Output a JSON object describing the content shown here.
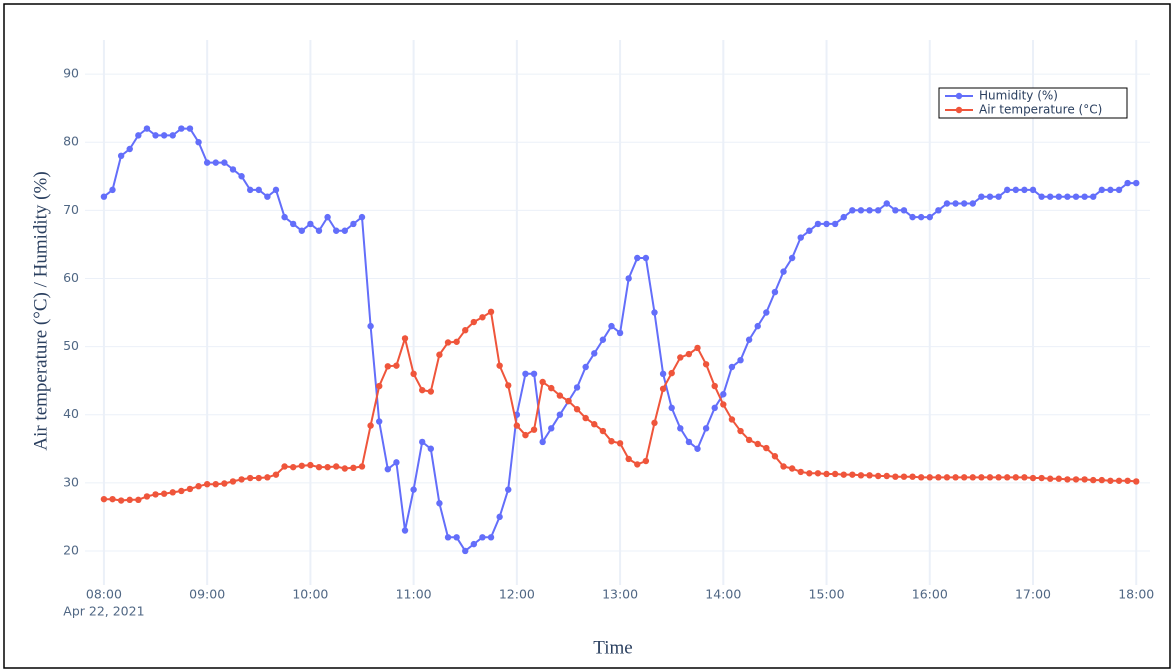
{
  "chart_data": {
    "type": "line",
    "xlabel": "Time",
    "ylabel": "Air temperature (°C) / Humidity (%)",
    "x_date_label": "Apr 22, 2021",
    "x": [
      "2021-04-22 08:00",
      "2021-04-22 08:05",
      "2021-04-22 08:10",
      "2021-04-22 08:15",
      "2021-04-22 08:20",
      "2021-04-22 08:25",
      "2021-04-22 08:30",
      "2021-04-22 08:35",
      "2021-04-22 08:40",
      "2021-04-22 08:45",
      "2021-04-22 08:50",
      "2021-04-22 08:55",
      "2021-04-22 09:00",
      "2021-04-22 09:05",
      "2021-04-22 09:10",
      "2021-04-22 09:15",
      "2021-04-22 09:20",
      "2021-04-22 09:25",
      "2021-04-22 09:30",
      "2021-04-22 09:35",
      "2021-04-22 09:40",
      "2021-04-22 09:45",
      "2021-04-22 09:50",
      "2021-04-22 09:55",
      "2021-04-22 10:00",
      "2021-04-22 10:05",
      "2021-04-22 10:10",
      "2021-04-22 10:15",
      "2021-04-22 10:20",
      "2021-04-22 10:25",
      "2021-04-22 10:30",
      "2021-04-22 10:35",
      "2021-04-22 10:40",
      "2021-04-22 10:45",
      "2021-04-22 10:50",
      "2021-04-22 10:55",
      "2021-04-22 11:00",
      "2021-04-22 11:05",
      "2021-04-22 11:10",
      "2021-04-22 11:15",
      "2021-04-22 11:20",
      "2021-04-22 11:25",
      "2021-04-22 11:30",
      "2021-04-22 11:35",
      "2021-04-22 11:40",
      "2021-04-22 11:45",
      "2021-04-22 11:50",
      "2021-04-22 11:55",
      "2021-04-22 12:00",
      "2021-04-22 12:05",
      "2021-04-22 12:10",
      "2021-04-22 12:15",
      "2021-04-22 12:20",
      "2021-04-22 12:25",
      "2021-04-22 12:30",
      "2021-04-22 12:35",
      "2021-04-22 12:40",
      "2021-04-22 12:45",
      "2021-04-22 12:50",
      "2021-04-22 12:55",
      "2021-04-22 13:00",
      "2021-04-22 13:05",
      "2021-04-22 13:10",
      "2021-04-22 13:15",
      "2021-04-22 13:20",
      "2021-04-22 13:25",
      "2021-04-22 13:30",
      "2021-04-22 13:35",
      "2021-04-22 13:40",
      "2021-04-22 13:45",
      "2021-04-22 13:50",
      "2021-04-22 13:55",
      "2021-04-22 14:00",
      "2021-04-22 14:05",
      "2021-04-22 14:10",
      "2021-04-22 14:15",
      "2021-04-22 14:20",
      "2021-04-22 14:25",
      "2021-04-22 14:30",
      "2021-04-22 14:35",
      "2021-04-22 14:40",
      "2021-04-22 14:45",
      "2021-04-22 14:50",
      "2021-04-22 14:55",
      "2021-04-22 15:00",
      "2021-04-22 15:05",
      "2021-04-22 15:10",
      "2021-04-22 15:15",
      "2021-04-22 15:20",
      "2021-04-22 15:25",
      "2021-04-22 15:30",
      "2021-04-22 15:35",
      "2021-04-22 15:40",
      "2021-04-22 15:45",
      "2021-04-22 15:50",
      "2021-04-22 15:55",
      "2021-04-22 16:00",
      "2021-04-22 16:05",
      "2021-04-22 16:10",
      "2021-04-22 16:15",
      "2021-04-22 16:20",
      "2021-04-22 16:25",
      "2021-04-22 16:30",
      "2021-04-22 16:35",
      "2021-04-22 16:40",
      "2021-04-22 16:45",
      "2021-04-22 16:50",
      "2021-04-22 16:55",
      "2021-04-22 17:00",
      "2021-04-22 17:05",
      "2021-04-22 17:10",
      "2021-04-22 17:15",
      "2021-04-22 17:20",
      "2021-04-22 17:25",
      "2021-04-22 17:30",
      "2021-04-22 17:35",
      "2021-04-22 17:40",
      "2021-04-22 17:45",
      "2021-04-22 17:50",
      "2021-04-22 17:55",
      "2021-04-22 18:00"
    ],
    "series": [
      {
        "name": "Humidity (%)",
        "color": "#636efa",
        "values": [
          72,
          73,
          78,
          79,
          81,
          82,
          81,
          81,
          81,
          82,
          82,
          80,
          77,
          77,
          77,
          76,
          75,
          73,
          73,
          72,
          73,
          69,
          68,
          67,
          68,
          67,
          69,
          67,
          67,
          68,
          69,
          53,
          39,
          32,
          33,
          23,
          29,
          36,
          35,
          27,
          22,
          22,
          20,
          21,
          22,
          22,
          25,
          29,
          40,
          46,
          46,
          36,
          38,
          40,
          42,
          44,
          47,
          49,
          51,
          53,
          52,
          60,
          63,
          63,
          55,
          46,
          41,
          38,
          36,
          35,
          38,
          41,
          43,
          47,
          48,
          51,
          53,
          55,
          58,
          61,
          63,
          66,
          67,
          68,
          68,
          68,
          69,
          70,
          70,
          70,
          70,
          71,
          70,
          70,
          69,
          69,
          69,
          70,
          71,
          71,
          71,
          71,
          72,
          72,
          72,
          73,
          73,
          73,
          73,
          72,
          72,
          72,
          72,
          72,
          72,
          72,
          73,
          73,
          73,
          74,
          74
        ]
      },
      {
        "name": "Air temperature (°C)",
        "color": "#ef553b",
        "values": [
          27.6,
          27.6,
          27.4,
          27.5,
          27.5,
          28.0,
          28.3,
          28.4,
          28.6,
          28.8,
          29.1,
          29.5,
          29.8,
          29.8,
          29.9,
          30.2,
          30.5,
          30.7,
          30.7,
          30.8,
          31.2,
          32.4,
          32.3,
          32.5,
          32.6,
          32.3,
          32.3,
          32.4,
          32.1,
          32.2,
          32.4,
          38.4,
          44.2,
          47.1,
          47.2,
          51.2,
          46.0,
          43.6,
          43.4,
          48.8,
          50.6,
          50.7,
          52.4,
          53.6,
          54.3,
          55.1,
          47.2,
          44.3,
          38.4,
          37.0,
          37.8,
          44.8,
          43.9,
          42.8,
          42.0,
          40.8,
          39.5,
          38.6,
          37.6,
          36.1,
          35.8,
          33.5,
          32.7,
          33.2,
          38.8,
          43.8,
          46.1,
          48.4,
          48.9,
          49.8,
          47.4,
          44.2,
          41.5,
          39.3,
          37.6,
          36.3,
          35.7,
          35.1,
          33.9,
          32.4,
          32.1,
          31.6,
          31.4,
          31.4,
          31.3,
          31.3,
          31.2,
          31.2,
          31.1,
          31.1,
          31.0,
          31.0,
          30.9,
          30.9,
          30.9,
          30.8,
          30.8,
          30.8,
          30.8,
          30.8,
          30.8,
          30.8,
          30.8,
          30.8,
          30.8,
          30.8,
          30.8,
          30.8,
          30.7,
          30.7,
          30.6,
          30.6,
          30.5,
          30.5,
          30.5,
          30.4,
          30.4,
          30.3,
          30.3,
          30.3,
          30.2
        ]
      }
    ],
    "xlim": [
      "2021-04-22 07:49",
      "2021-04-22 18:08"
    ],
    "xticks": [
      {
        "value": "2021-04-22 08:00",
        "label": "08:00"
      },
      {
        "value": "2021-04-22 09:00",
        "label": "09:00"
      },
      {
        "value": "2021-04-22 10:00",
        "label": "10:00"
      },
      {
        "value": "2021-04-22 11:00",
        "label": "11:00"
      },
      {
        "value": "2021-04-22 12:00",
        "label": "12:00"
      },
      {
        "value": "2021-04-22 13:00",
        "label": "13:00"
      },
      {
        "value": "2021-04-22 14:00",
        "label": "14:00"
      },
      {
        "value": "2021-04-22 15:00",
        "label": "15:00"
      },
      {
        "value": "2021-04-22 16:00",
        "label": "16:00"
      },
      {
        "value": "2021-04-22 17:00",
        "label": "17:00"
      },
      {
        "value": "2021-04-22 18:00",
        "label": "18:00"
      }
    ],
    "ylim": [
      15,
      95
    ],
    "yticks": [
      20,
      30,
      40,
      50,
      60,
      70,
      80,
      90
    ],
    "grid": true,
    "legend": "upper right"
  }
}
